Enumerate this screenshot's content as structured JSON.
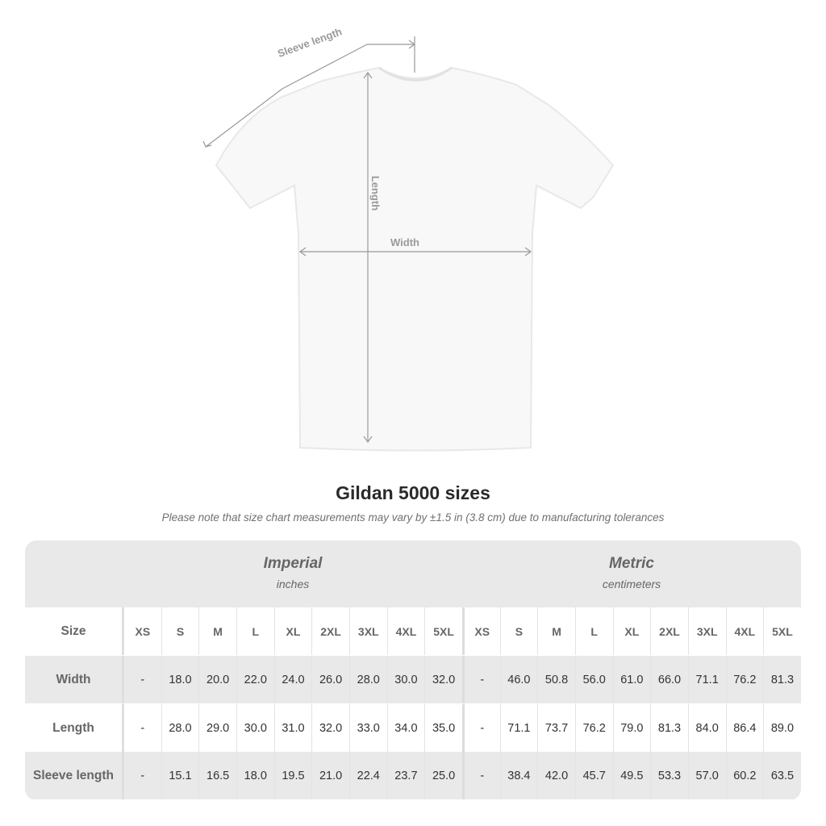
{
  "diagram": {
    "sleeve_label": "Sleeve length",
    "length_label": "Length",
    "width_label": "Width"
  },
  "title": "Gildan 5000 sizes",
  "note": "Please note that size chart measurements may vary by ±1.5 in (3.8 cm) due to manufacturing tolerances",
  "table": {
    "imperial": {
      "name": "Imperial",
      "unit": "inches"
    },
    "metric": {
      "name": "Metric",
      "unit": "centimeters"
    },
    "size_label": "Size",
    "sizes": [
      "XS",
      "S",
      "M",
      "L",
      "XL",
      "2XL",
      "3XL",
      "4XL",
      "5XL"
    ],
    "rows": [
      {
        "label": "Width",
        "imperial": [
          "-",
          "18.0",
          "20.0",
          "22.0",
          "24.0",
          "26.0",
          "28.0",
          "30.0",
          "32.0"
        ],
        "metric": [
          "-",
          "46.0",
          "50.8",
          "56.0",
          "61.0",
          "66.0",
          "71.1",
          "76.2",
          "81.3"
        ]
      },
      {
        "label": "Length",
        "imperial": [
          "-",
          "28.0",
          "29.0",
          "30.0",
          "31.0",
          "32.0",
          "33.0",
          "34.0",
          "35.0"
        ],
        "metric": [
          "-",
          "71.1",
          "73.7",
          "76.2",
          "79.0",
          "81.3",
          "84.0",
          "86.4",
          "89.0"
        ]
      },
      {
        "label": "Sleeve length",
        "imperial": [
          "-",
          "15.1",
          "16.5",
          "18.0",
          "19.5",
          "21.0",
          "22.4",
          "23.7",
          "25.0"
        ],
        "metric": [
          "-",
          "38.4",
          "42.0",
          "45.7",
          "49.5",
          "53.3",
          "57.0",
          "60.2",
          "63.5"
        ]
      }
    ]
  },
  "colors": {
    "band": "#e9e9e9",
    "measure": "#9a9a9a"
  }
}
